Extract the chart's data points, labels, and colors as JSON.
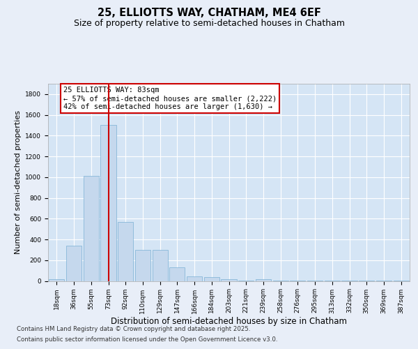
{
  "title_line1": "25, ELLIOTTS WAY, CHATHAM, ME4 6EF",
  "title_line2": "Size of property relative to semi-detached houses in Chatham",
  "xlabel": "Distribution of semi-detached houses by size in Chatham",
  "ylabel": "Number of semi-detached properties",
  "categories": [
    "18sqm",
    "36sqm",
    "55sqm",
    "73sqm",
    "92sqm",
    "110sqm",
    "129sqm",
    "147sqm",
    "166sqm",
    "184sqm",
    "203sqm",
    "221sqm",
    "239sqm",
    "258sqm",
    "276sqm",
    "295sqm",
    "313sqm",
    "332sqm",
    "350sqm",
    "369sqm",
    "387sqm"
  ],
  "values": [
    20,
    340,
    1010,
    1500,
    570,
    300,
    300,
    130,
    45,
    35,
    20,
    2,
    20,
    2,
    1,
    1,
    1,
    1,
    1,
    1,
    1
  ],
  "bar_color": "#c5d8ed",
  "bar_edge_color": "#7aafd4",
  "vline_x": 3.0,
  "vline_color": "#cc0000",
  "annotation_title": "25 ELLIOTTS WAY: 83sqm",
  "annotation_line2": "← 57% of semi-detached houses are smaller (2,222)",
  "annotation_line3": "42% of semi-detached houses are larger (1,630) →",
  "annotation_box_facecolor": "#ffffff",
  "annotation_box_edgecolor": "#cc0000",
  "ylim_max": 1900,
  "yticks": [
    0,
    200,
    400,
    600,
    800,
    1000,
    1200,
    1400,
    1600,
    1800
  ],
  "background_color": "#e8eef8",
  "plot_background_color": "#d5e5f5",
  "footer_line1": "Contains HM Land Registry data © Crown copyright and database right 2025.",
  "footer_line2": "Contains public sector information licensed under the Open Government Licence v3.0.",
  "title_fontsize": 10.5,
  "subtitle_fontsize": 9,
  "ylabel_fontsize": 8,
  "xlabel_fontsize": 8.5,
  "tick_fontsize": 6.5,
  "annotation_fontsize": 7.5,
  "footer_fontsize": 6.2
}
